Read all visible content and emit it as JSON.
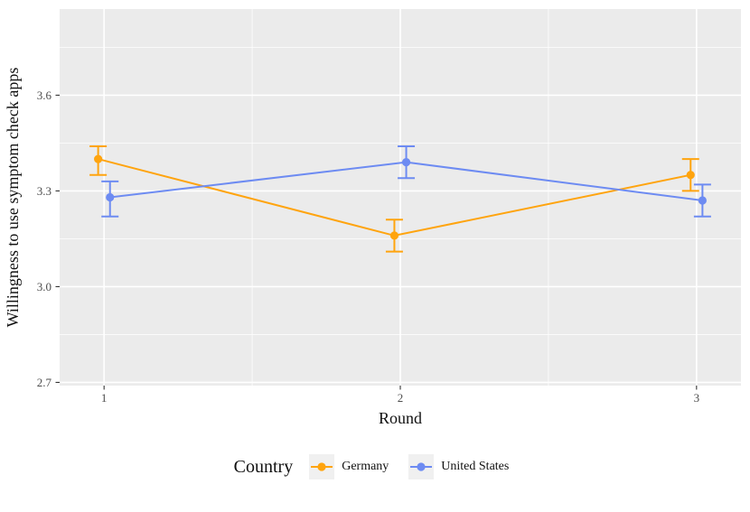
{
  "chart_data": {
    "type": "line",
    "title": "",
    "xlabel": "Round",
    "ylabel": "Willingness to use symptom check apps",
    "legend_title": "Country",
    "legend_position": "bottom",
    "x_ticks": [
      "1",
      "2",
      "3"
    ],
    "x_tick_values": [
      1,
      2,
      3
    ],
    "y_ticks": [
      "2.7",
      "3.0",
      "3.3",
      "3.6"
    ],
    "y_tick_values": [
      2.7,
      3.0,
      3.3,
      3.6
    ],
    "x_minor": [
      1.5,
      2.5
    ],
    "y_minor": [
      2.85,
      3.15,
      3.45,
      3.75
    ],
    "xlim": [
      0.85,
      3.15
    ],
    "ylim": [
      2.69,
      3.87
    ],
    "dodge": 0.02,
    "grid": true,
    "panel_color": "#EBEBEB",
    "gridline_color": "#FFFFFF",
    "tick_label_color": "#4D4D4D",
    "axis_title_color": "#111111",
    "x": [
      1,
      2,
      3
    ],
    "series": [
      {
        "name": "Germany",
        "color": "#FFA40E",
        "values": [
          3.4,
          3.16,
          3.35
        ],
        "ci_low": [
          3.35,
          3.11,
          3.3
        ],
        "ci_high": [
          3.44,
          3.21,
          3.4
        ]
      },
      {
        "name": "United States",
        "color": "#6D8BF2",
        "values": [
          3.28,
          3.39,
          3.27
        ],
        "ci_low": [
          3.22,
          3.34,
          3.22
        ],
        "ci_high": [
          3.33,
          3.44,
          3.32
        ]
      }
    ]
  }
}
